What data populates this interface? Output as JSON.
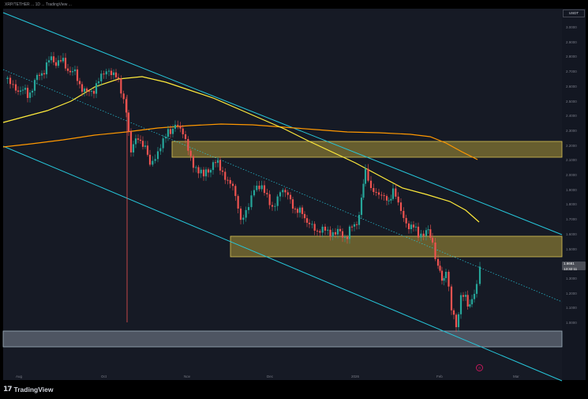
{
  "header": {
    "symbol_line": "XRP/TETHER ... 1D ... TradingView ..."
  },
  "brand": {
    "logo_glyph": "17",
    "name": "TradingView"
  },
  "scale_label": "USDT",
  "last_price": {
    "line1": "1.6661",
    "line2": "13:32:11"
  },
  "y_axis": {
    "ticks": [
      "3.0000",
      "2.9000",
      "2.8000",
      "2.7000",
      "2.6000",
      "2.5000",
      "2.4000",
      "2.3000",
      "2.2000",
      "2.1000",
      "2.0000",
      "1.9000",
      "1.8000",
      "1.7000",
      "1.6000",
      "1.5000",
      "1.4000",
      "1.3000",
      "1.2000",
      "1.1000",
      "1.0000"
    ]
  },
  "x_axis": {
    "ticks": [
      "Aug",
      "Oct",
      "Nov",
      "Dec",
      "2026",
      "Feb",
      "Mar"
    ]
  },
  "colors": {
    "background": "#161a25",
    "channel": "#26c6da",
    "ma_fast": "#ffeb3b",
    "ma_slow": "#ff9800",
    "zone": "#c9b13c",
    "support_zone": "#b7c6d3",
    "up": "#26a69a",
    "down": "#ef5350"
  },
  "icons": {
    "alert": "alert-clock-icon"
  }
}
